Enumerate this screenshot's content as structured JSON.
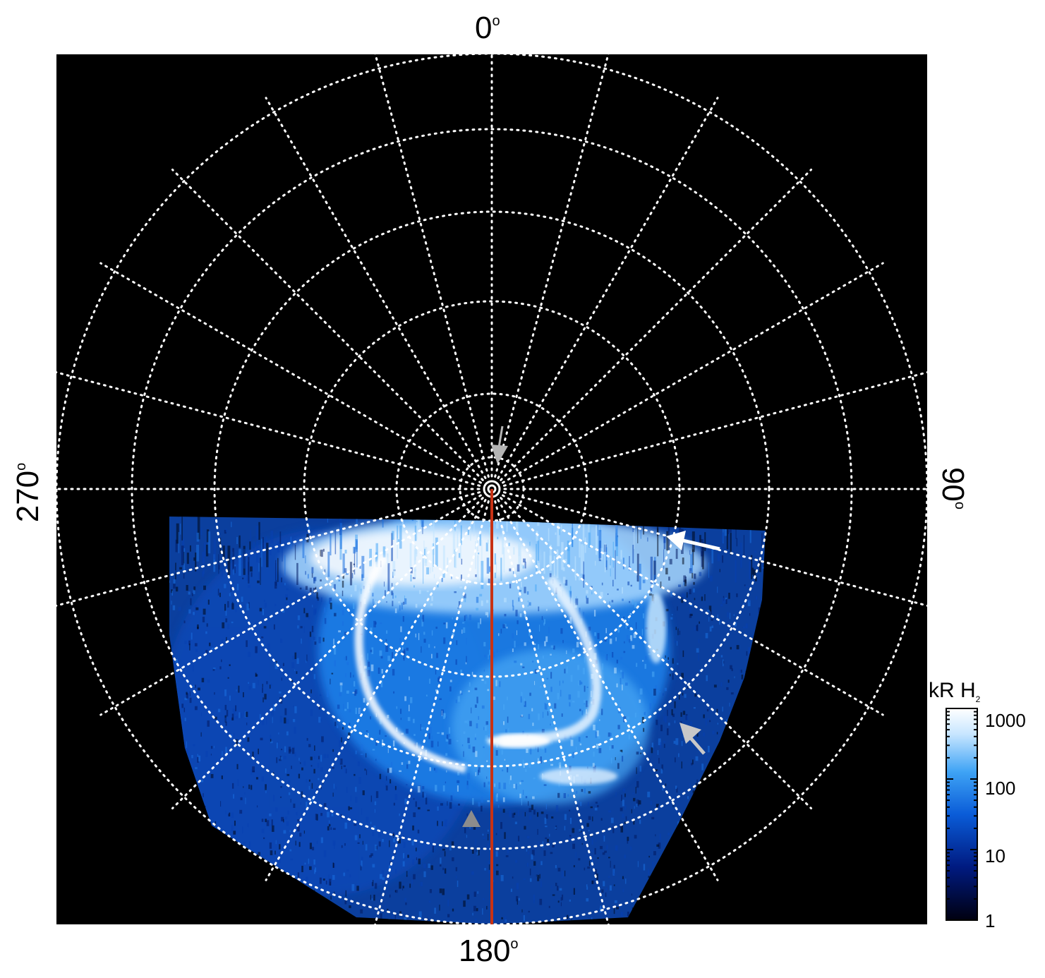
{
  "labels": {
    "top": "0",
    "bottom": "180",
    "left": "270",
    "right": "90",
    "degree_symbol": "o"
  },
  "colorbar": {
    "title_main": "kR H",
    "title_sub": "2",
    "ticks": [
      "1000",
      "100",
      "10",
      "1"
    ],
    "colors": [
      "#000010",
      "#001a80",
      "#0a5cd8",
      "#3ea3f5",
      "#c8e6ff",
      "#ffffff"
    ]
  },
  "style": {
    "background": "#000000",
    "grid_color": "#ffffff",
    "meridian_color": "#c83214",
    "arrow_white": "#ffffff",
    "arrow_grey": "#b4b4b4"
  },
  "grid": {
    "meridian_count": 24,
    "parallel_count": 6
  }
}
